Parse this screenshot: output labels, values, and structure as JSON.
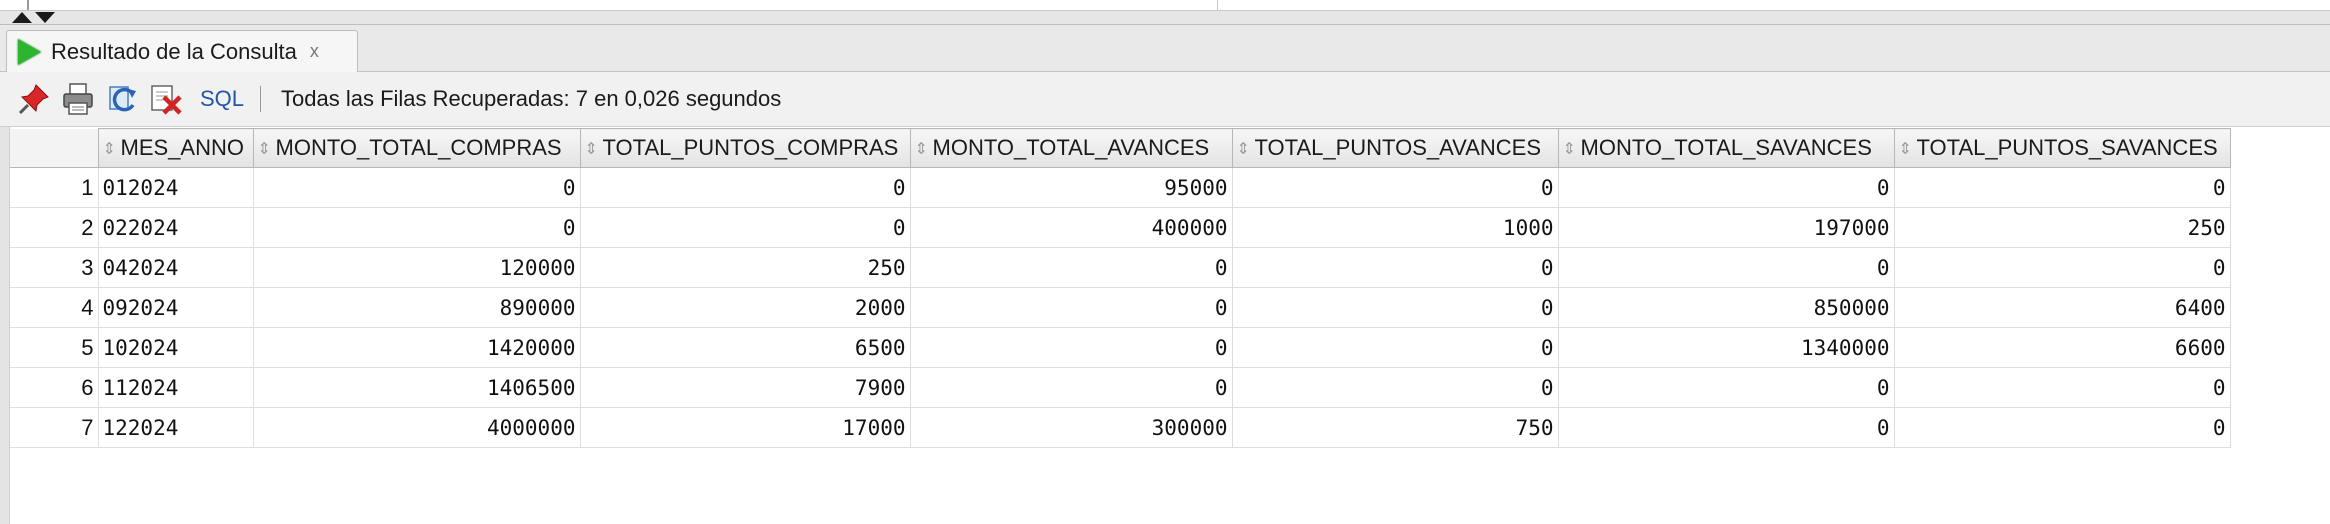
{
  "tab": {
    "title": "Resultado de la Consulta",
    "close": "x"
  },
  "toolbar": {
    "icons": [
      "pin-icon",
      "print-icon",
      "refresh-icon",
      "clear-icon"
    ],
    "sql_label": "SQL",
    "status": "Todas las Filas Recuperadas: 7 en 0,026 segundos"
  },
  "grid": {
    "columns": [
      "MES_ANNO",
      "MONTO_TOTAL_COMPRAS",
      "TOTAL_PUNTOS_COMPRAS",
      "MONTO_TOTAL_AVANCES",
      "TOTAL_PUNTOS_AVANCES",
      "MONTO_TOTAL_SAVANCES",
      "TOTAL_PUNTOS_SAVANCES"
    ],
    "rows": [
      {
        "num": "1",
        "cells": [
          "012024",
          "0",
          "0",
          "95000",
          "0",
          "0",
          "0"
        ]
      },
      {
        "num": "2",
        "cells": [
          "022024",
          "0",
          "0",
          "400000",
          "1000",
          "197000",
          "250"
        ]
      },
      {
        "num": "3",
        "cells": [
          "042024",
          "120000",
          "250",
          "0",
          "0",
          "0",
          "0"
        ]
      },
      {
        "num": "4",
        "cells": [
          "092024",
          "890000",
          "2000",
          "0",
          "0",
          "850000",
          "6400"
        ]
      },
      {
        "num": "5",
        "cells": [
          "102024",
          "1420000",
          "6500",
          "0",
          "0",
          "1340000",
          "6600"
        ]
      },
      {
        "num": "6",
        "cells": [
          "112024",
          "1406500",
          "7900",
          "0",
          "0",
          "0",
          "0"
        ]
      },
      {
        "num": "7",
        "cells": [
          "122024",
          "4000000",
          "17000",
          "300000",
          "750",
          "0",
          "0"
        ]
      }
    ]
  }
}
